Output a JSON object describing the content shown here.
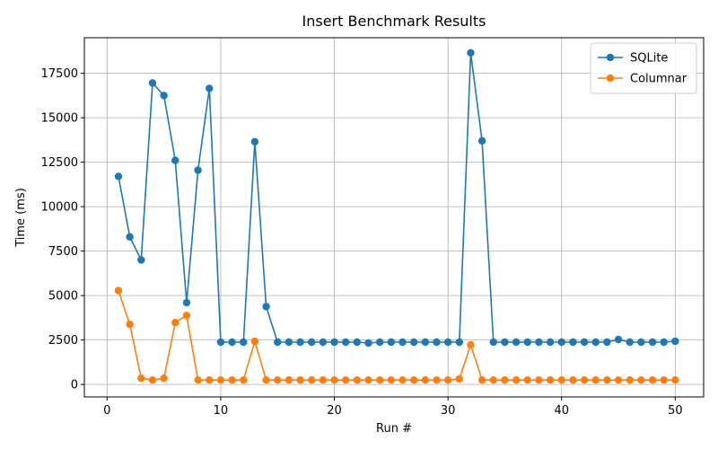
{
  "chart_data": {
    "type": "line",
    "title": "Insert Benchmark Results",
    "xlabel": "Run #",
    "ylabel": "Time (ms)",
    "xlim": [
      -2,
      52.5
    ],
    "ylim": [
      -700,
      19500
    ],
    "xticks": [
      0,
      10,
      20,
      30,
      40,
      50
    ],
    "yticks": [
      0,
      2500,
      5000,
      7500,
      10000,
      12500,
      15000,
      17500
    ],
    "xtick_labels": [
      "0",
      "10",
      "20",
      "30",
      "40",
      "50"
    ],
    "ytick_labels": [
      "0",
      "2500",
      "5000",
      "7500",
      "10000",
      "12500",
      "15000",
      "17500"
    ],
    "grid": true,
    "legend_position": "top-right",
    "x": [
      1,
      2,
      3,
      4,
      5,
      6,
      7,
      8,
      9,
      10,
      11,
      12,
      13,
      14,
      15,
      16,
      17,
      18,
      19,
      20,
      21,
      22,
      23,
      24,
      25,
      26,
      27,
      28,
      29,
      30,
      31,
      32,
      33,
      34,
      35,
      36,
      37,
      38,
      39,
      40,
      41,
      42,
      43,
      44,
      45,
      46,
      47,
      48,
      49,
      50
    ],
    "series": [
      {
        "name": "SQLite",
        "color": "#1f77b4",
        "values": [
          11700,
          8300,
          7000,
          16950,
          16250,
          12600,
          4600,
          12050,
          16650,
          2380,
          2380,
          2380,
          13650,
          4380,
          2380,
          2380,
          2380,
          2380,
          2380,
          2380,
          2380,
          2380,
          2330,
          2380,
          2380,
          2380,
          2380,
          2380,
          2380,
          2380,
          2380,
          18650,
          13700,
          2380,
          2380,
          2380,
          2380,
          2380,
          2380,
          2380,
          2380,
          2380,
          2380,
          2380,
          2530,
          2380,
          2380,
          2380,
          2380,
          2430
        ]
      },
      {
        "name": "Columnar",
        "color": "#ff7f0e",
        "values": [
          5280,
          3380,
          350,
          250,
          350,
          3480,
          3880,
          250,
          250,
          250,
          250,
          250,
          2430,
          250,
          250,
          250,
          250,
          250,
          250,
          250,
          250,
          250,
          250,
          250,
          250,
          250,
          250,
          250,
          250,
          250,
          310,
          2230,
          250,
          250,
          250,
          250,
          250,
          250,
          250,
          250,
          250,
          250,
          250,
          250,
          250,
          250,
          250,
          250,
          250,
          250
        ]
      }
    ]
  }
}
